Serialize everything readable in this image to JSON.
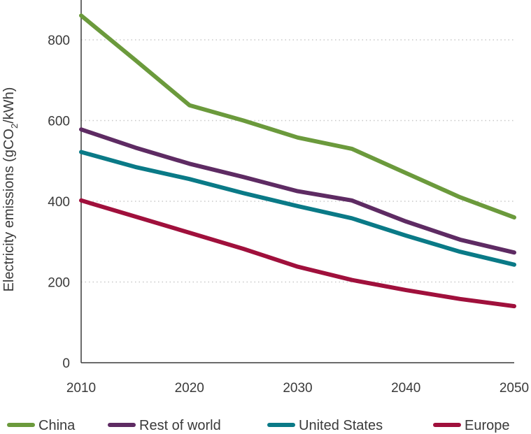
{
  "chart_data": {
    "type": "line",
    "title": "",
    "xlabel": "",
    "ylabel_main": "Electricity emissions (gCO",
    "ylabel_sub": "2",
    "ylabel_end": "/kWh)",
    "xlim": [
      2010,
      2050
    ],
    "ylim": [
      0,
      870
    ],
    "x_ticks": [
      "2010",
      "2020",
      "2030",
      "2040",
      "2050"
    ],
    "y_ticks": [
      "0",
      "200",
      "400",
      "600",
      "800"
    ],
    "grid": "horizontal-dotted",
    "legend_position": "bottom",
    "series": [
      {
        "name": "China",
        "color": "#6b9a3c",
        "x": [
          2010,
          2015,
          2020,
          2025,
          2030,
          2035,
          2040,
          2045,
          2050
        ],
        "y": [
          860,
          750,
          638,
          600,
          558,
          530,
          470,
          410,
          360
        ]
      },
      {
        "name": "Rest of world",
        "color": "#5e2b63",
        "x": [
          2010,
          2015,
          2020,
          2025,
          2030,
          2035,
          2040,
          2045,
          2050
        ],
        "y": [
          578,
          533,
          493,
          460,
          425,
          402,
          350,
          305,
          273
        ]
      },
      {
        "name": "United States",
        "color": "#0a7a87",
        "x": [
          2010,
          2015,
          2020,
          2025,
          2030,
          2035,
          2040,
          2045,
          2050
        ],
        "y": [
          522,
          485,
          455,
          420,
          388,
          358,
          315,
          275,
          243
        ]
      },
      {
        "name": "Europe",
        "color": "#a0103c",
        "x": [
          2010,
          2015,
          2020,
          2025,
          2030,
          2035,
          2040,
          2045,
          2050
        ],
        "y": [
          402,
          362,
          322,
          282,
          238,
          205,
          180,
          158,
          140
        ]
      }
    ]
  }
}
